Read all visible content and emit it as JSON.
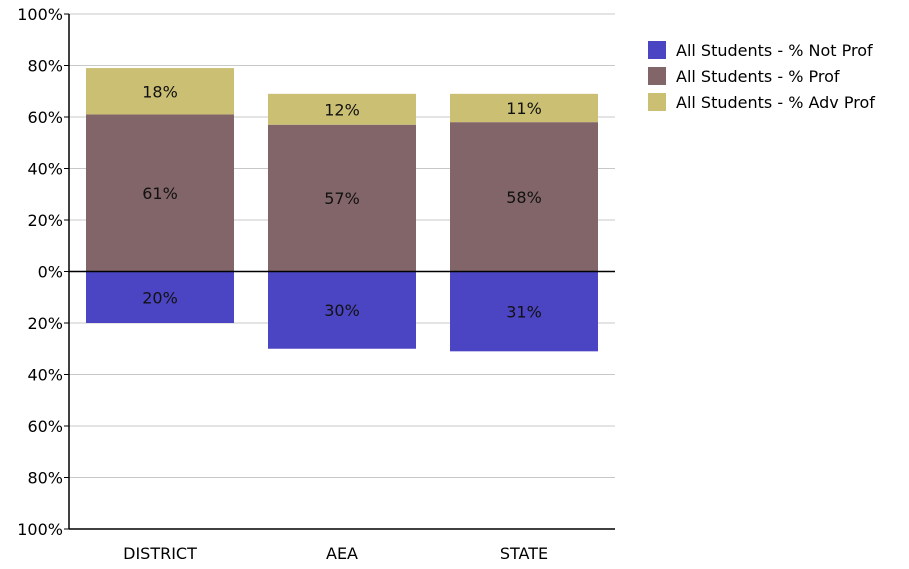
{
  "chart_data": {
    "type": "bar",
    "stacked": true,
    "diverging": true,
    "categories": [
      "DISTRICT",
      "AEA",
      "STATE"
    ],
    "series": [
      {
        "name": "All Students - % Not Prof",
        "values": [
          -20,
          -30,
          -31
        ],
        "labels": [
          "20%",
          "30%",
          "31%"
        ],
        "color": "#4b45c3"
      },
      {
        "name": "All Students - % Prof",
        "values": [
          61,
          57,
          58
        ],
        "labels": [
          "61%",
          "57%",
          "58%"
        ],
        "color": "#826569"
      },
      {
        "name": "All Students - % Adv Prof",
        "values": [
          18,
          12,
          11
        ],
        "labels": [
          "18%",
          "12%",
          "11%"
        ],
        "color": "#cbbf73"
      }
    ],
    "ylim": [
      -100,
      100
    ],
    "yticks": [
      100,
      80,
      60,
      40,
      20,
      0,
      -20,
      -40,
      -60,
      -80,
      -100
    ],
    "ytick_labels": [
      "100%",
      "80%",
      "60%",
      "40%",
      "20%",
      "0%",
      "20%",
      "40%",
      "60%",
      "80%",
      "100%"
    ],
    "grid": true,
    "legend_position": "right",
    "title": "",
    "xlabel": "",
    "ylabel": ""
  }
}
